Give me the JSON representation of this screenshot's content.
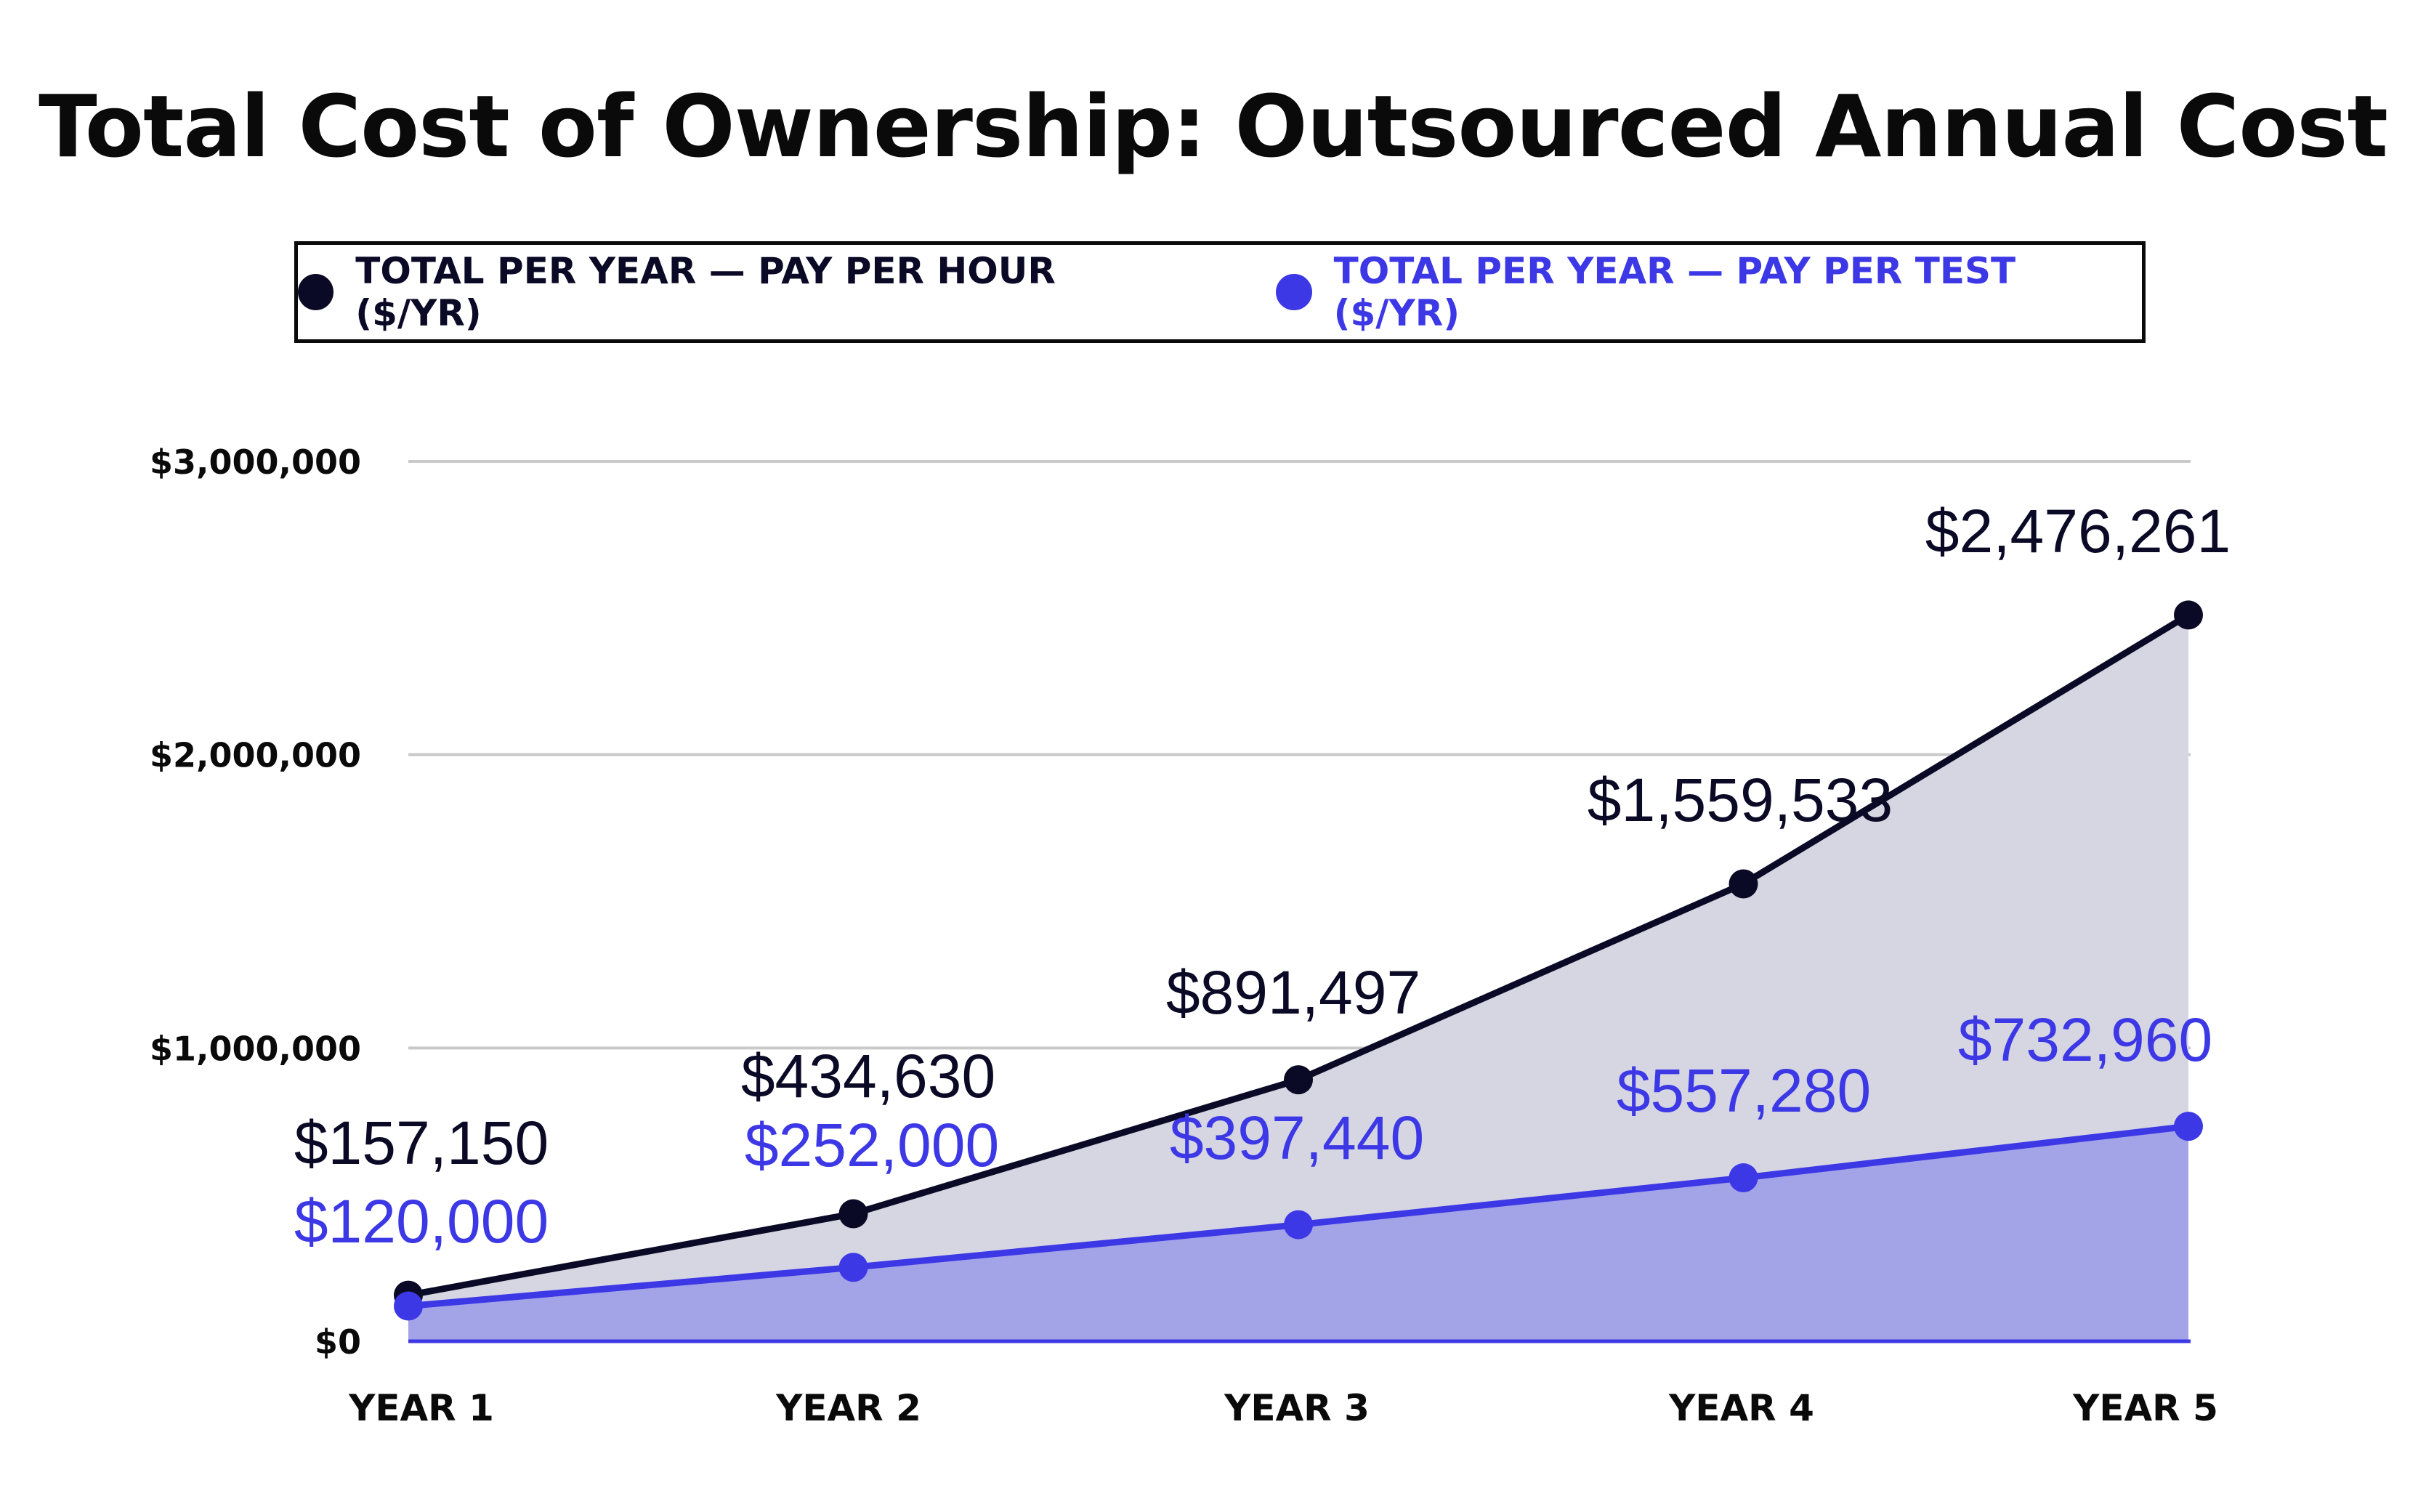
{
  "chart_data": {
    "type": "area",
    "title": "Total Cost of Ownership: Outsourced Annual Cost",
    "categories": [
      "YEAR 1",
      "YEAR 2",
      "YEAR 3",
      "YEAR 4",
      "YEAR 5"
    ],
    "ylim": [
      0,
      3000000
    ],
    "yticks": [
      {
        "value": 0,
        "label": "$0"
      },
      {
        "value": 1000000,
        "label": "$1,000,000"
      },
      {
        "value": 2000000,
        "label": "$2,000,000"
      },
      {
        "value": 3000000,
        "label": "$3,000,000"
      }
    ],
    "grid": true,
    "legend_position": "top",
    "series": [
      {
        "name": "TOTAL PER YEAR — PAY PER HOUR ($/YR)",
        "color": "#0b0a26",
        "fill": "#d6d6e2",
        "values": [
          157150,
          434630,
          891497,
          1559533,
          2476261
        ],
        "labels": [
          "$157,150",
          "$434,630",
          "$891,497",
          "$1,559,533",
          "$2,476,261"
        ]
      },
      {
        "name": "TOTAL PER YEAR — PAY PER TEST ($/YR)",
        "color": "#3d38e6",
        "fill": "#a3a3e8",
        "values": [
          120000,
          252000,
          397440,
          557280,
          732960
        ],
        "labels": [
          "$120,000",
          "$252,000",
          "$397,440",
          "$557,280",
          "$732,960"
        ]
      }
    ]
  }
}
